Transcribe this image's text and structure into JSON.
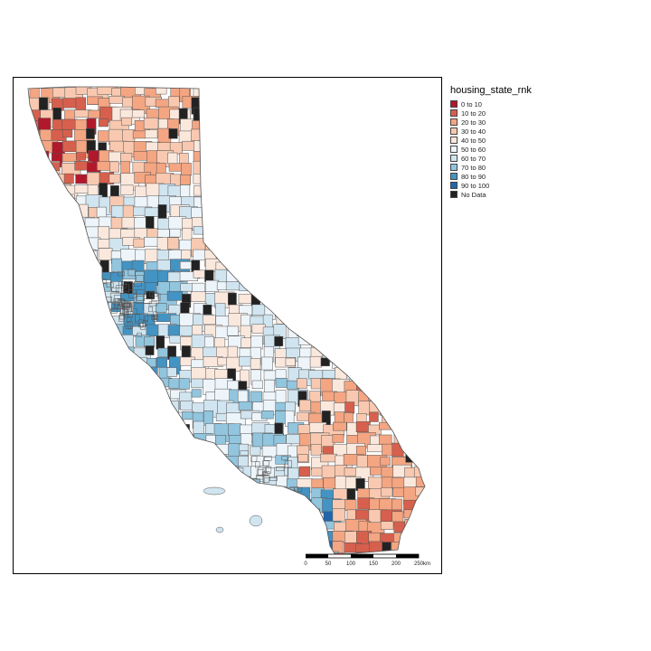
{
  "legend": {
    "title": "housing_state_rnk",
    "items": [
      {
        "label": "0 to 10",
        "color": "#b2182b"
      },
      {
        "label": "10 to 20",
        "color": "#d6604d"
      },
      {
        "label": "20 to 30",
        "color": "#f4a582"
      },
      {
        "label": "30 to 40",
        "color": "#f8c9b0"
      },
      {
        "label": "40 to 50",
        "color": "#fbe8dd"
      },
      {
        "label": "50 to 60",
        "color": "#eef5fa"
      },
      {
        "label": "60 to 70",
        "color": "#d1e5f0"
      },
      {
        "label": "70 to 80",
        "color": "#92c5de"
      },
      {
        "label": "80 to 90",
        "color": "#4393c3"
      },
      {
        "label": "90 to 100",
        "color": "#2166ac"
      },
      {
        "label": "No Data",
        "color": "#222222"
      }
    ]
  },
  "scale_bar": {
    "ticks": [
      "0",
      "50",
      "100",
      "150",
      "200",
      "250"
    ],
    "unit": "km"
  },
  "boundary_color": "#555555"
}
